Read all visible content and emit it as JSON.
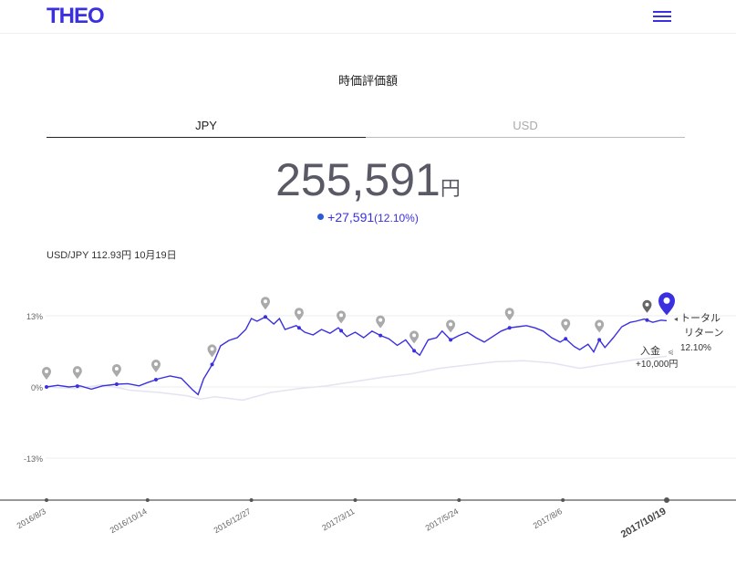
{
  "header": {
    "logo": "THEO",
    "menu_icon": "hamburger-menu-icon"
  },
  "page_title": "時価評価額",
  "tabs": [
    {
      "label": "JPY",
      "active": true
    },
    {
      "label": "USD",
      "active": false
    }
  ],
  "valuation": {
    "amount": "255,591",
    "unit": "円",
    "change": "+27,591",
    "change_pct": "(12.10%)"
  },
  "fx_rate": "USD/JPY 112.93円 10月19日",
  "colors": {
    "brand": "#3b30e0",
    "benchmark": "#e3e4f2",
    "marker": "#aaaaaa",
    "axis": "#777777"
  },
  "chart_data": {
    "type": "line",
    "y_ticks": [
      "13%",
      "0%",
      "-13%"
    ],
    "y_tick_values": [
      13,
      0,
      -13
    ],
    "ylim": [
      -21,
      21
    ],
    "x_ticks": [
      "2016/8/3",
      "2016/10/14",
      "2016/12/27",
      "2017/3/11",
      "2017/5/24",
      "2017/8/6",
      "2017/10/19"
    ],
    "x_tick_days": [
      0,
      72,
      146,
      220,
      294,
      368,
      442
    ],
    "series": [
      {
        "role": "portfolio",
        "points": [
          [
            0,
            0
          ],
          [
            8,
            0.3
          ],
          [
            16,
            0
          ],
          [
            24,
            0.2
          ],
          [
            32,
            -0.4
          ],
          [
            40,
            0.2
          ],
          [
            50,
            0.5
          ],
          [
            58,
            0.6
          ],
          [
            66,
            0.2
          ],
          [
            72,
            0.8
          ],
          [
            80,
            1.5
          ],
          [
            88,
            2.0
          ],
          [
            96,
            1.6
          ],
          [
            104,
            -0.5
          ],
          [
            108,
            -1.4
          ],
          [
            112,
            1.5
          ],
          [
            116,
            3.2
          ],
          [
            120,
            5.0
          ],
          [
            124,
            7.5
          ],
          [
            130,
            8.5
          ],
          [
            136,
            9.0
          ],
          [
            142,
            10.5
          ],
          [
            146,
            12.5
          ],
          [
            150,
            12.0
          ],
          [
            156,
            12.8
          ],
          [
            162,
            11.5
          ],
          [
            166,
            12.5
          ],
          [
            170,
            10.5
          ],
          [
            178,
            11.2
          ],
          [
            184,
            10.0
          ],
          [
            190,
            9.5
          ],
          [
            196,
            10.5
          ],
          [
            202,
            9.8
          ],
          [
            208,
            10.8
          ],
          [
            214,
            9.2
          ],
          [
            220,
            10.0
          ],
          [
            226,
            9.0
          ],
          [
            232,
            10.2
          ],
          [
            238,
            9.4
          ],
          [
            244,
            8.8
          ],
          [
            250,
            7.6
          ],
          [
            256,
            8.6
          ],
          [
            262,
            6.6
          ],
          [
            266,
            5.8
          ],
          [
            272,
            8.6
          ],
          [
            278,
            9.0
          ],
          [
            282,
            10.2
          ],
          [
            288,
            8.6
          ],
          [
            294,
            9.4
          ],
          [
            300,
            10.0
          ],
          [
            306,
            9.0
          ],
          [
            312,
            8.2
          ],
          [
            318,
            9.2
          ],
          [
            324,
            10.2
          ],
          [
            330,
            10.8
          ],
          [
            336,
            11.0
          ],
          [
            342,
            11.2
          ],
          [
            348,
            10.8
          ],
          [
            354,
            10.2
          ],
          [
            360,
            9.0
          ],
          [
            366,
            8.2
          ],
          [
            370,
            8.8
          ],
          [
            376,
            7.4
          ],
          [
            380,
            6.8
          ],
          [
            386,
            7.8
          ],
          [
            390,
            6.4
          ],
          [
            394,
            8.6
          ],
          [
            398,
            7.2
          ],
          [
            404,
            9.0
          ],
          [
            410,
            11.0
          ],
          [
            416,
            11.8
          ],
          [
            420,
            12.0
          ],
          [
            426,
            12.4
          ],
          [
            432,
            11.8
          ],
          [
            438,
            12.2
          ],
          [
            442,
            12.1
          ]
        ]
      },
      {
        "role": "benchmark",
        "points": [
          [
            0,
            0
          ],
          [
            20,
            -0.3
          ],
          [
            40,
            0.4
          ],
          [
            60,
            -0.6
          ],
          [
            80,
            -1.0
          ],
          [
            100,
            -1.6
          ],
          [
            110,
            -2.2
          ],
          [
            120,
            -1.8
          ],
          [
            140,
            -2.4
          ],
          [
            160,
            -1.0
          ],
          [
            180,
            -0.3
          ],
          [
            200,
            0.2
          ],
          [
            220,
            1.0
          ],
          [
            240,
            1.8
          ],
          [
            260,
            2.4
          ],
          [
            280,
            3.4
          ],
          [
            300,
            4.0
          ],
          [
            320,
            4.6
          ],
          [
            340,
            4.8
          ],
          [
            360,
            4.4
          ],
          [
            380,
            3.4
          ],
          [
            400,
            4.2
          ],
          [
            420,
            5.0
          ],
          [
            442,
            5.6
          ]
        ]
      }
    ],
    "events": [
      {
        "type": "入金",
        "amount": "+10,000円"
      },
      {
        "type": "トータル リターン",
        "value": "12.10%"
      }
    ]
  }
}
